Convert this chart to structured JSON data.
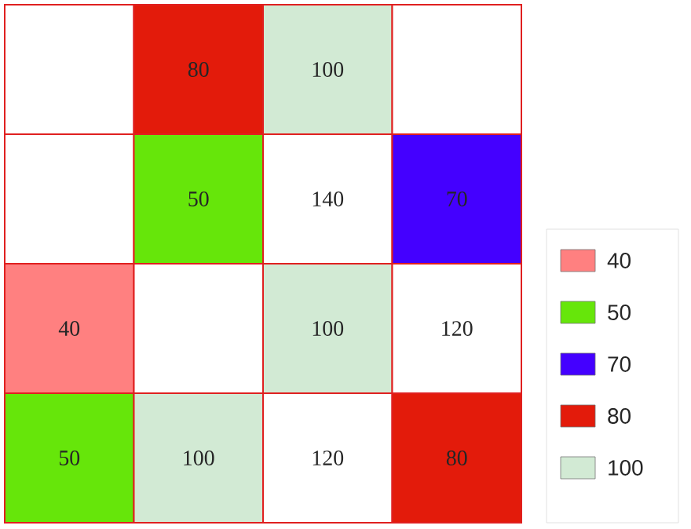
{
  "chart_data": {
    "type": "heatmap",
    "categories": [
      null,
      null,
      null,
      null
    ],
    "y_categories": [
      null,
      null,
      null,
      null
    ],
    "cells": [
      [
        null,
        80,
        100,
        null
      ],
      [
        null,
        50,
        140,
        70
      ],
      [
        40,
        null,
        100,
        120
      ],
      [
        50,
        100,
        120,
        80
      ]
    ],
    "colors": [
      [
        null,
        "#e31b0b",
        "#d2ead4",
        null
      ],
      [
        null,
        "#66e60a",
        "#ffffff",
        "#4400ff"
      ],
      [
        "#ff8080",
        null,
        "#d2ead4",
        "#ffffff"
      ],
      [
        "#66e60a",
        "#d2ead4",
        "#ffffff",
        "#e31b0b"
      ]
    ],
    "data_labels": true,
    "legend": "bottom right",
    "series": [
      {
        "name": "40",
        "color": "#ff8080",
        "values": [
          null,
          null,
          null,
          null
        ]
      },
      {
        "name": "50",
        "color": "#66e60a",
        "values": [
          null,
          null,
          null,
          null
        ]
      },
      {
        "name": "70",
        "color": "#4400ff",
        "values": [
          null,
          null,
          null,
          null
        ]
      },
      {
        "name": "80",
        "color": "#e31b0b",
        "values": [
          null,
          null,
          null,
          null
        ]
      },
      {
        "name": "100",
        "color": "#d2ead4",
        "values": [
          null,
          null,
          null,
          null
        ]
      }
    ]
  }
}
